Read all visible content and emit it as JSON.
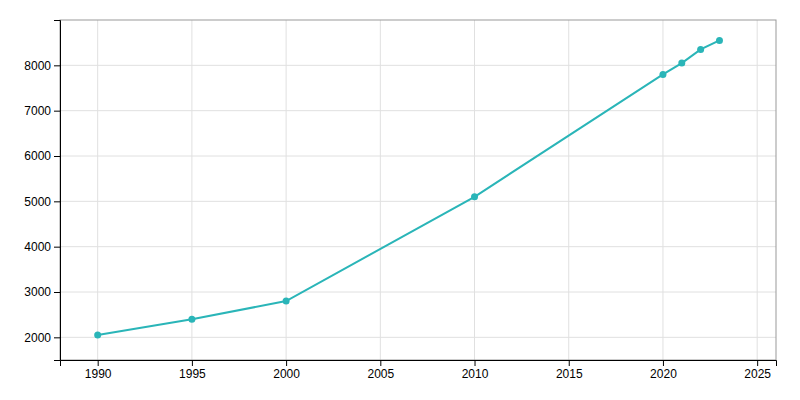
{
  "chart_data": {
    "type": "line",
    "x": [
      1990,
      1995,
      2000,
      2010,
      2020,
      2021,
      2022,
      2023
    ],
    "values": [
      2050,
      2400,
      2800,
      5100,
      7800,
      8050,
      8350,
      8550
    ],
    "color": "#2ab5b8",
    "marker": "circle",
    "xlim": [
      1988,
      2026
    ],
    "ylim": [
      1500,
      9000
    ],
    "xticks": [
      1990,
      1995,
      2000,
      2005,
      2010,
      2015,
      2020,
      2025
    ],
    "yticks": [
      2000,
      3000,
      4000,
      5000,
      6000,
      7000,
      8000
    ],
    "grid": true
  }
}
